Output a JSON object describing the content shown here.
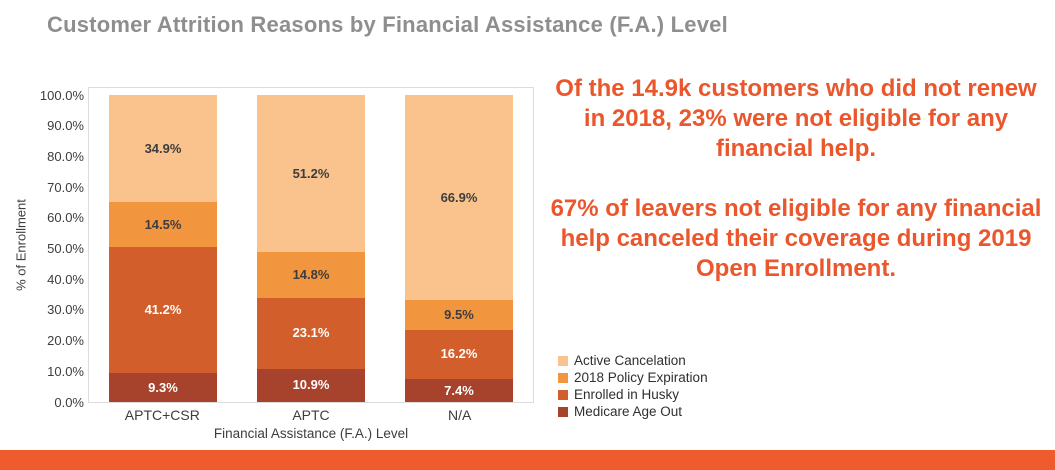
{
  "title": "Customer Attrition Reasons by Financial Assistance (F.A.) Level",
  "chart_data": {
    "type": "bar",
    "stacked": true,
    "title": "",
    "xlabel": "Financial Assistance (F.A.) Level",
    "ylabel": "% of Enrollment",
    "ylim": [
      0,
      100
    ],
    "grid": false,
    "categories": [
      "APTC+CSR",
      "APTC",
      "N/A"
    ],
    "series": [
      {
        "name": "Medicare Age Out",
        "color": "#A7422C",
        "label_color": "#FFFFFF",
        "values": [
          9.3,
          10.9,
          7.4
        ]
      },
      {
        "name": "Enrolled in Husky",
        "color": "#D15E2B",
        "label_color": "#FFFFFF",
        "values": [
          41.2,
          23.1,
          16.2
        ]
      },
      {
        "name": "2018 Policy Expiration",
        "color": "#F2953F",
        "label_color": "#3D3D3D",
        "values": [
          14.5,
          14.8,
          9.5
        ]
      },
      {
        "name": "Active Cancelation",
        "color": "#FAC28C",
        "label_color": "#3D3D3D",
        "values": [
          34.9,
          51.2,
          66.9
        ]
      }
    ],
    "y_ticks": [
      "100.0%",
      "90.0%",
      "80.0%",
      "70.0%",
      "60.0%",
      "50.0%",
      "40.0%",
      "30.0%",
      "20.0%",
      "10.0%",
      "0.0%"
    ],
    "legend_position": "bottom-right",
    "legend_order": [
      "Active Cancelation",
      "2018 Policy Expiration",
      "Enrolled in Husky",
      "Medicare Age Out"
    ]
  },
  "annotation": {
    "paragraph1": "Of the 14.9k customers who did not renew in 2018, 23% were not eligible for any financial help.",
    "paragraph2": "67% of leavers not eligible for any financial help canceled their coverage during 2019 Open Enrollment.",
    "text_color": "#EA572C"
  },
  "footer": {
    "bar_color": "#EF5B2D"
  },
  "colors": {
    "title_text": "#8E8E8E",
    "axis_text": "#3D3D3D",
    "plot_border": "#DCDCDC",
    "background": "#FFFFFF"
  }
}
